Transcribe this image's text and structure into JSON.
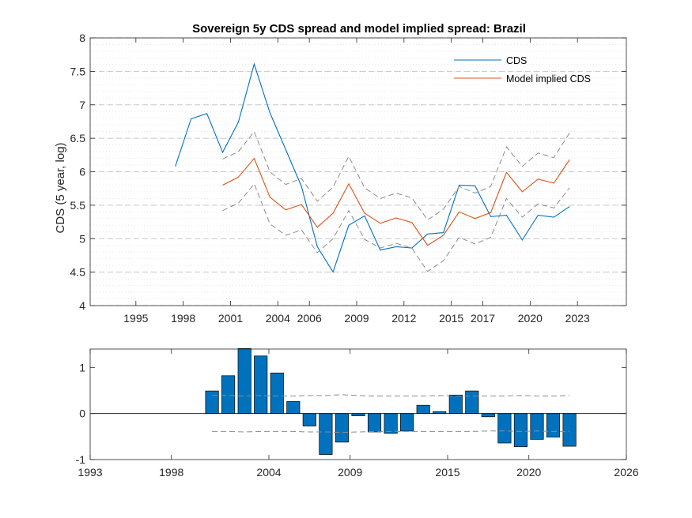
{
  "chart_data": [
    {
      "type": "line",
      "title": "Sovereign 5y CDS spread and model implied spread: Brazil",
      "ylabel": "CDS (5 year, log)",
      "xlim": [
        1992.1,
        2026.1
      ],
      "ylim": [
        4,
        8
      ],
      "xticks": [
        1995,
        1998,
        2001,
        2004,
        2006,
        2009,
        2012,
        2015,
        2017,
        2020,
        2023
      ],
      "xtick_labels": [
        "1995",
        "1998",
        "2001",
        "2004",
        "2006",
        "2009",
        "2012",
        "2015",
        "2017",
        "2020",
        "2023"
      ],
      "yticks": [
        4,
        4.5,
        5,
        5.5,
        6,
        6.5,
        7,
        7.5,
        8
      ],
      "ytick_labels": [
        "4",
        "4.5",
        "5",
        "5.5",
        "6",
        "6.5",
        "7",
        "7.5",
        "8"
      ],
      "grid": true,
      "legend_position": "top-right",
      "series": [
        {
          "name": "CDS",
          "color": "#0072BD",
          "x": [
            1997.5,
            1998.5,
            1999.5,
            2000.5,
            2001.5,
            2002.5,
            2003.5,
            2004.5,
            2005.5,
            2006.5,
            2007.5,
            2008.5,
            2009.5,
            2010.5,
            2011.5,
            2012.5,
            2013.5,
            2014.5,
            2015.5,
            2016.5,
            2017.5,
            2018.5,
            2019.5,
            2020.5,
            2021.5,
            2022.5
          ],
          "values": [
            6.08,
            6.79,
            6.87,
            6.29,
            6.74,
            7.61,
            6.88,
            6.33,
            5.78,
            4.88,
            4.5,
            5.2,
            5.34,
            4.83,
            4.88,
            4.86,
            5.07,
            5.09,
            5.8,
            5.79,
            5.33,
            5.35,
            4.98,
            5.35,
            5.32,
            5.48
          ]
        },
        {
          "name": "Model implied CDS",
          "color": "#D95319",
          "x": [
            2000.5,
            2001.5,
            2002.5,
            2003.5,
            2004.5,
            2005.5,
            2006.5,
            2007.5,
            2008.5,
            2009.5,
            2010.5,
            2011.5,
            2012.5,
            2013.5,
            2014.5,
            2015.5,
            2016.5,
            2017.5,
            2018.5,
            2019.5,
            2020.5,
            2021.5,
            2022.5
          ],
          "values": [
            5.8,
            5.92,
            6.2,
            5.62,
            5.43,
            5.51,
            5.17,
            5.38,
            5.82,
            5.38,
            5.23,
            5.31,
            5.24,
            4.9,
            5.05,
            5.4,
            5.3,
            5.39,
            5.99,
            5.7,
            5.89,
            5.83,
            6.18
          ]
        },
        {
          "color": "#8c8c8c",
          "dashed": true,
          "x": [
            2000.5,
            2001.5,
            2002.5,
            2003.5,
            2004.5,
            2005.5,
            2006.5,
            2007.5,
            2008.5,
            2009.5,
            2010.5,
            2011.5,
            2012.5,
            2013.5,
            2014.5,
            2015.5,
            2016.5,
            2017.5,
            2018.5,
            2019.5,
            2020.5,
            2021.5,
            2022.5
          ],
          "values": [
            6.19,
            6.3,
            6.6,
            6.0,
            5.81,
            5.9,
            5.56,
            5.77,
            6.23,
            5.76,
            5.6,
            5.68,
            5.61,
            5.28,
            5.44,
            5.78,
            5.68,
            5.78,
            6.37,
            6.08,
            6.28,
            6.21,
            6.58
          ]
        },
        {
          "color": "#8c8c8c",
          "dashed": true,
          "x": [
            2000.5,
            2001.5,
            2002.5,
            2003.5,
            2004.5,
            2005.5,
            2006.5,
            2007.5,
            2008.5,
            2009.5,
            2010.5,
            2011.5,
            2012.5,
            2013.5,
            2014.5,
            2015.5,
            2016.5,
            2017.5,
            2018.5,
            2019.5,
            2020.5,
            2021.5,
            2022.5
          ],
          "values": [
            5.42,
            5.53,
            5.82,
            5.22,
            5.05,
            5.13,
            4.79,
            5.0,
            5.42,
            4.99,
            4.86,
            4.93,
            4.86,
            4.51,
            4.67,
            5.02,
            4.92,
            5.02,
            5.6,
            5.32,
            5.52,
            5.46,
            5.76
          ]
        }
      ]
    },
    {
      "type": "bar",
      "xlim": [
        1993,
        2026
      ],
      "ylim": [
        -1,
        1.4
      ],
      "xticks": [
        1993,
        1998,
        2004,
        2009,
        2015,
        2020,
        2026
      ],
      "xtick_labels": [
        "1993",
        "1998",
        "2004",
        "2009",
        "2015",
        "2020",
        "2026"
      ],
      "yticks": [
        -1,
        0,
        1
      ],
      "ytick_labels": [
        "-1",
        "0",
        "1"
      ],
      "bar_color": "#0072BD",
      "x": [
        2000.5,
        2001.5,
        2002.5,
        2003.5,
        2004.5,
        2005.5,
        2006.5,
        2007.5,
        2008.5,
        2009.5,
        2010.5,
        2011.5,
        2012.5,
        2013.5,
        2014.5,
        2015.5,
        2016.5,
        2017.5,
        2018.5,
        2019.5,
        2020.5,
        2021.5,
        2022.5
      ],
      "values": [
        0.49,
        0.82,
        1.41,
        1.25,
        0.88,
        0.26,
        -0.27,
        -0.89,
        -0.62,
        -0.05,
        -0.4,
        -0.43,
        -0.38,
        0.18,
        0.04,
        0.4,
        0.49,
        -0.07,
        -0.64,
        -0.72,
        -0.56,
        -0.51,
        -0.71
      ],
      "bands": [
        {
          "color": "#8c8c8c",
          "dashed": true,
          "x": [
            2000.5,
            2001.5,
            2002.5,
            2003.5,
            2004.5,
            2005.5,
            2006.5,
            2007.5,
            2008.5,
            2009.5,
            2010.5,
            2011.5,
            2012.5,
            2013.5,
            2014.5,
            2015.5,
            2016.5,
            2017.5,
            2018.5,
            2019.5,
            2020.5,
            2021.5,
            2022.5
          ],
          "values": [
            0.39,
            0.39,
            0.38,
            0.39,
            0.38,
            0.38,
            0.39,
            0.39,
            0.41,
            0.39,
            0.38,
            0.38,
            0.38,
            0.38,
            0.39,
            0.38,
            0.38,
            0.38,
            0.38,
            0.39,
            0.38,
            0.38,
            0.39
          ]
        },
        {
          "color": "#8c8c8c",
          "dashed": true,
          "x": [
            2000.5,
            2001.5,
            2002.5,
            2003.5,
            2004.5,
            2005.5,
            2006.5,
            2007.5,
            2008.5,
            2009.5,
            2010.5,
            2011.5,
            2012.5,
            2013.5,
            2014.5,
            2015.5,
            2016.5,
            2017.5,
            2018.5,
            2019.5,
            2020.5,
            2021.5,
            2022.5
          ],
          "values": [
            -0.39,
            -0.39,
            -0.4,
            -0.39,
            -0.39,
            -0.39,
            -0.4,
            -0.4,
            -0.41,
            -0.4,
            -0.39,
            -0.39,
            -0.39,
            -0.39,
            -0.39,
            -0.39,
            -0.39,
            -0.38,
            -0.38,
            -0.39,
            -0.38,
            -0.39,
            -0.39
          ]
        }
      ]
    }
  ]
}
